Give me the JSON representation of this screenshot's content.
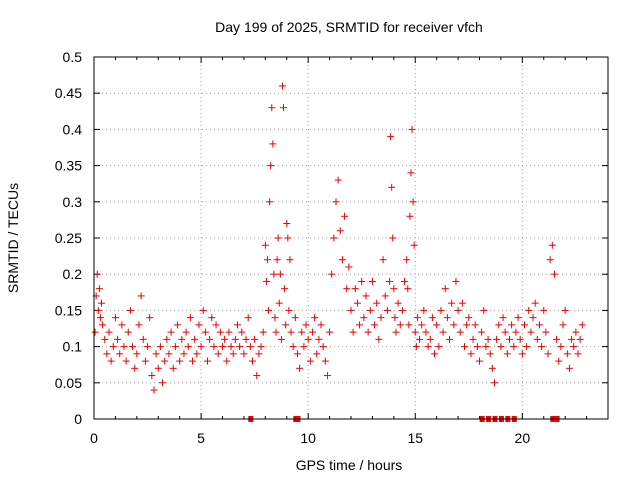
{
  "chart_data": {
    "type": "scatter",
    "title": "Day 199 of 2025, SRMTID for receiver vfch",
    "xlabel": "GPS time / hours",
    "ylabel": "SRMTID / TECUs",
    "xlim": [
      0,
      24
    ],
    "ylim": [
      0,
      0.5
    ],
    "x_ticks": [
      "0",
      "5",
      "10",
      "15",
      "20"
    ],
    "y_ticks": [
      "0",
      "0.05",
      "0.1",
      "0.15",
      "0.2",
      "0.25",
      "0.3",
      "0.35",
      "0.4",
      "0.45",
      "0.5"
    ],
    "grid": true,
    "marker": "plus",
    "color": "#ee0000",
    "series": [
      {
        "name": "SRMTID",
        "x": [
          0.05,
          0.1,
          0.15,
          0.2,
          0.25,
          0.3,
          0.35,
          0.4,
          0.5,
          0.6,
          0.7,
          0.8,
          0.9,
          1.0,
          1.1,
          1.2,
          1.3,
          1.4,
          1.5,
          1.6,
          1.7,
          1.8,
          1.9,
          2.0,
          2.1,
          2.2,
          2.3,
          2.4,
          2.5,
          2.6,
          2.7,
          2.8,
          2.9,
          3.0,
          3.1,
          3.2,
          3.3,
          3.4,
          3.5,
          3.6,
          3.7,
          3.8,
          3.9,
          4.0,
          4.1,
          4.2,
          4.3,
          4.4,
          4.5,
          4.6,
          4.7,
          4.8,
          4.9,
          5.0,
          5.1,
          5.2,
          5.3,
          5.4,
          5.5,
          5.6,
          5.7,
          5.8,
          5.9,
          6.0,
          6.1,
          6.2,
          6.3,
          6.4,
          6.5,
          6.6,
          6.7,
          6.8,
          6.9,
          7.0,
          7.1,
          7.2,
          7.3,
          7.4,
          7.5,
          7.6,
          7.7,
          7.8,
          7.9,
          8.0,
          8.05,
          8.1,
          8.15,
          8.2,
          8.25,
          8.3,
          8.35,
          8.4,
          8.45,
          8.5,
          8.55,
          8.6,
          8.65,
          8.7,
          8.75,
          8.8,
          8.85,
          8.9,
          8.95,
          9.0,
          9.05,
          9.1,
          9.15,
          9.2,
          9.3,
          9.4,
          9.5,
          9.6,
          9.7,
          9.8,
          9.9,
          10.0,
          10.1,
          10.2,
          10.3,
          10.4,
          10.5,
          10.6,
          10.7,
          10.8,
          10.9,
          11.0,
          11.1,
          11.2,
          11.3,
          11.4,
          11.5,
          11.6,
          11.7,
          11.8,
          11.9,
          12.0,
          12.1,
          12.2,
          12.3,
          12.4,
          12.5,
          12.6,
          12.7,
          12.8,
          12.9,
          13.0,
          13.1,
          13.2,
          13.3,
          13.4,
          13.5,
          13.6,
          13.7,
          13.8,
          13.85,
          13.9,
          13.95,
          14.0,
          14.05,
          14.1,
          14.2,
          14.3,
          14.4,
          14.5,
          14.6,
          14.65,
          14.7,
          14.75,
          14.8,
          14.85,
          14.9,
          14.95,
          15.0,
          15.05,
          15.1,
          15.2,
          15.3,
          15.4,
          15.5,
          15.6,
          15.7,
          15.8,
          15.9,
          16.0,
          16.1,
          16.2,
          16.3,
          16.4,
          16.5,
          16.6,
          16.7,
          16.8,
          16.9,
          17.0,
          17.1,
          17.2,
          17.3,
          17.4,
          17.5,
          17.6,
          17.7,
          17.8,
          17.9,
          18.0,
          18.1,
          18.2,
          18.3,
          18.4,
          18.5,
          18.6,
          18.7,
          18.8,
          18.9,
          19.0,
          19.1,
          19.2,
          19.3,
          19.4,
          19.5,
          19.6,
          19.7,
          19.8,
          19.9,
          20.0,
          20.1,
          20.2,
          20.3,
          20.4,
          20.5,
          20.6,
          20.7,
          20.8,
          20.9,
          21.0,
          21.1,
          21.2,
          21.3,
          21.4,
          21.5,
          21.6,
          21.7,
          21.8,
          21.9,
          22.0,
          22.1,
          22.2,
          22.3,
          22.4,
          22.5,
          22.6,
          22.7,
          22.8
        ],
        "y": [
          0.12,
          0.17,
          0.2,
          0.15,
          0.18,
          0.14,
          0.16,
          0.13,
          0.11,
          0.09,
          0.12,
          0.08,
          0.1,
          0.14,
          0.11,
          0.09,
          0.13,
          0.1,
          0.08,
          0.12,
          0.15,
          0.1,
          0.07,
          0.09,
          0.13,
          0.17,
          0.11,
          0.08,
          0.1,
          0.14,
          0.06,
          0.04,
          0.09,
          0.07,
          0.1,
          0.05,
          0.08,
          0.11,
          0.09,
          0.12,
          0.07,
          0.1,
          0.13,
          0.08,
          0.11,
          0.09,
          0.12,
          0.1,
          0.14,
          0.08,
          0.11,
          0.09,
          0.13,
          0.1,
          0.15,
          0.12,
          0.08,
          0.11,
          0.14,
          0.1,
          0.13,
          0.09,
          0.12,
          0.1,
          0.11,
          0.08,
          0.12,
          0.1,
          0.09,
          0.11,
          0.13,
          0.1,
          0.12,
          0.09,
          0.11,
          0.14,
          0.1,
          0.08,
          0.11,
          0.06,
          0.09,
          0.1,
          0.12,
          0.24,
          0.19,
          0.22,
          0.15,
          0.3,
          0.35,
          0.43,
          0.38,
          0.2,
          0.14,
          0.12,
          0.22,
          0.25,
          0.16,
          0.2,
          0.11,
          0.46,
          0.43,
          0.18,
          0.13,
          0.27,
          0.25,
          0.15,
          0.22,
          0.12,
          0.1,
          0.14,
          0.09,
          0.07,
          0.12,
          0.1,
          0.13,
          0.11,
          0.08,
          0.12,
          0.14,
          0.09,
          0.11,
          0.13,
          0.1,
          0.08,
          0.06,
          0.12,
          0.2,
          0.25,
          0.3,
          0.33,
          0.26,
          0.22,
          0.28,
          0.18,
          0.21,
          0.15,
          0.12,
          0.18,
          0.16,
          0.13,
          0.19,
          0.14,
          0.17,
          0.12,
          0.15,
          0.19,
          0.13,
          0.16,
          0.11,
          0.14,
          0.22,
          0.17,
          0.15,
          0.19,
          0.39,
          0.32,
          0.25,
          0.18,
          0.14,
          0.12,
          0.16,
          0.13,
          0.15,
          0.19,
          0.22,
          0.18,
          0.13,
          0.28,
          0.34,
          0.4,
          0.3,
          0.24,
          0.12,
          0.1,
          0.14,
          0.11,
          0.13,
          0.15,
          0.12,
          0.1,
          0.11,
          0.14,
          0.09,
          0.13,
          0.1,
          0.15,
          0.12,
          0.18,
          0.14,
          0.11,
          0.16,
          0.13,
          0.19,
          0.15,
          0.12,
          0.16,
          0.1,
          0.13,
          0.14,
          0.09,
          0.11,
          0.13,
          0.1,
          0.08,
          0.12,
          0.15,
          0.1,
          0.11,
          0.09,
          0.07,
          0.05,
          0.11,
          0.13,
          0.1,
          0.14,
          0.12,
          0.09,
          0.11,
          0.13,
          0.1,
          0.12,
          0.14,
          0.11,
          0.09,
          0.13,
          0.1,
          0.15,
          0.12,
          0.14,
          0.16,
          0.11,
          0.13,
          0.1,
          0.15,
          0.12,
          0.09,
          0.22,
          0.24,
          0.2,
          0.11,
          0.08,
          0.1,
          0.13,
          0.15,
          0.09,
          0.07,
          0.11,
          0.1,
          0.12,
          0.09,
          0.11,
          0.13
        ]
      }
    ],
    "zero_markers_x": [
      7.3,
      9.4,
      9.5,
      18.1,
      18.4,
      18.7,
      19.0,
      19.3,
      19.6,
      21.4,
      21.5,
      21.6
    ]
  }
}
